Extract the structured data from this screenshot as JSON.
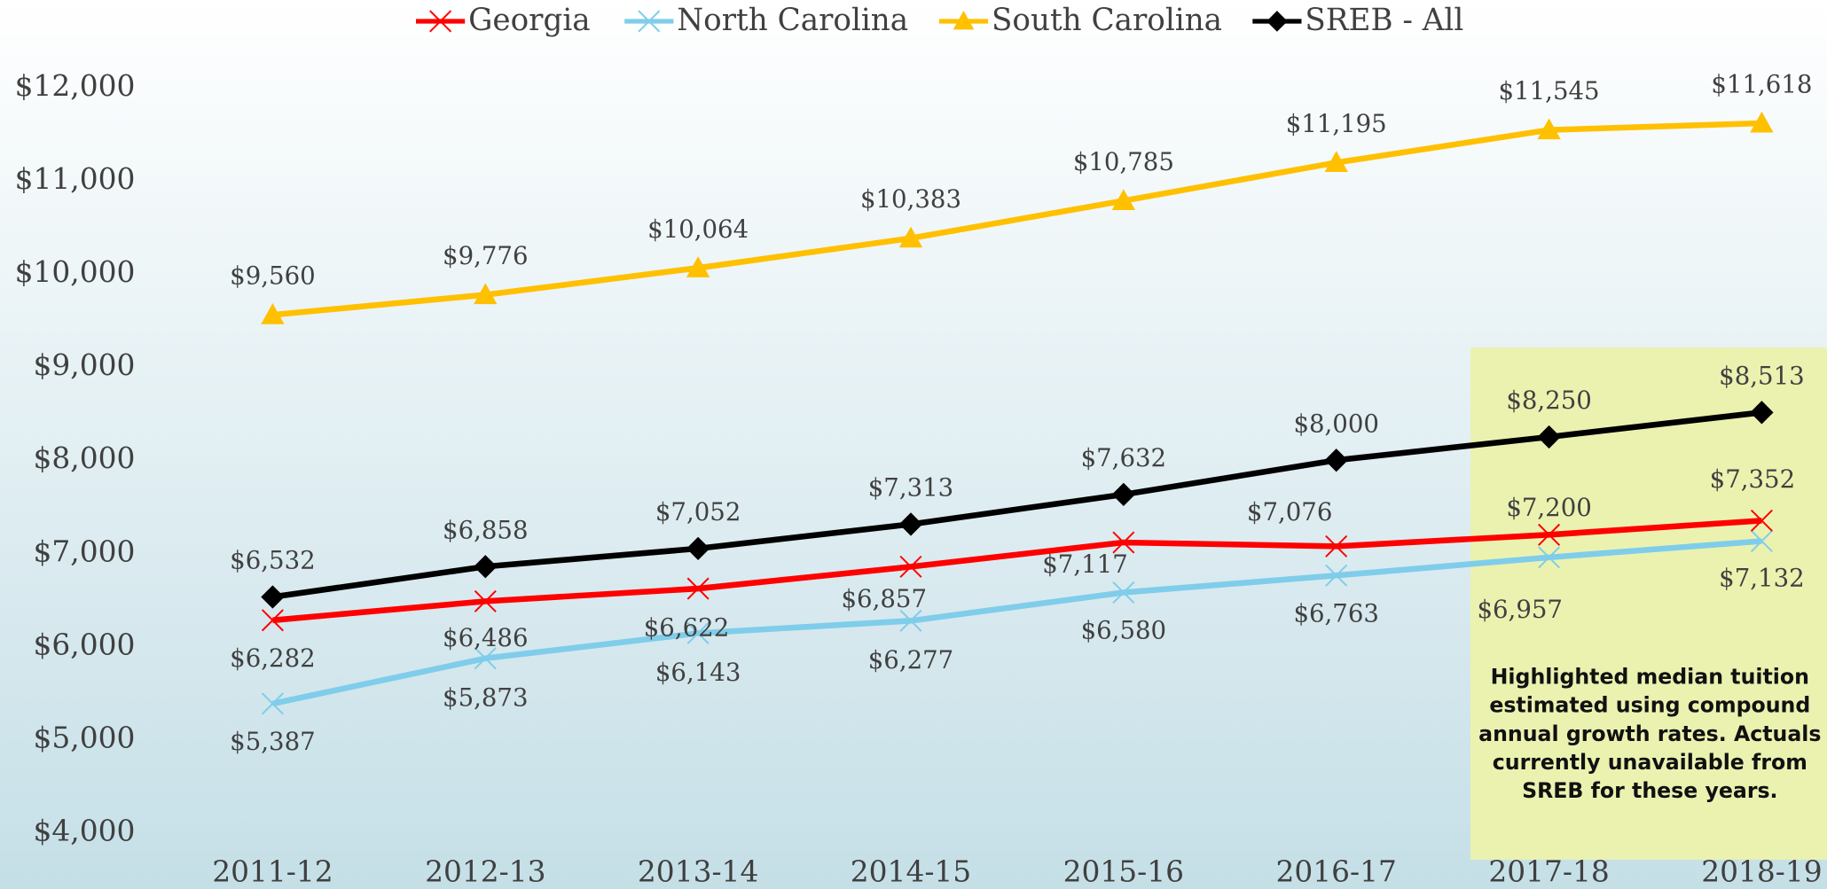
{
  "chart_data": {
    "type": "line",
    "categories": [
      "2011-12",
      "2012-13",
      "2013-14",
      "2014-15",
      "2015-16",
      "2016-17",
      "2017-18",
      "2018-19"
    ],
    "series": [
      {
        "name": "Georgia",
        "color": "#ff0000",
        "marker": "x",
        "values": [
          6282,
          6486,
          6622,
          6857,
          7117,
          7076,
          7200,
          7352
        ],
        "value_labels": [
          "$6,282",
          "$6,486",
          "$6,622",
          "$6,857",
          "$7,117",
          "$7,076",
          "$7,200",
          "$7,352"
        ]
      },
      {
        "name": "North Carolina",
        "color": "#7fcdea",
        "marker": "x",
        "values": [
          5387,
          5873,
          6143,
          6277,
          6580,
          6763,
          6957,
          7132
        ],
        "value_labels": [
          "$5,387",
          "$5,873",
          "$6,143",
          "$6,277",
          "$6,580",
          "$6,763",
          "$6,957",
          "$7,132"
        ]
      },
      {
        "name": "South Carolina",
        "color": "#ffc000",
        "marker": "triangle",
        "values": [
          9560,
          9776,
          10064,
          10383,
          10785,
          11195,
          11545,
          11618
        ],
        "value_labels": [
          "$9,560",
          "$9,776",
          "$10,064",
          "$10,383",
          "$10,785",
          "$11,195",
          "$11,545",
          "$11,618"
        ]
      },
      {
        "name": "SREB - All",
        "color": "#000000",
        "marker": "diamond",
        "values": [
          6532,
          6858,
          7052,
          7313,
          7632,
          8000,
          8250,
          8513
        ],
        "value_labels": [
          "$6,532",
          "$6,858",
          "$7,052",
          "$7,313",
          "$7,632",
          "$8,000",
          "$8,250",
          "$8,513"
        ]
      }
    ],
    "ylim": [
      4000,
      12000
    ],
    "yticks": [
      {
        "value": 4000,
        "label": "$4,000"
      },
      {
        "value": 5000,
        "label": "$5,000"
      },
      {
        "value": 6000,
        "label": "$6,000"
      },
      {
        "value": 7000,
        "label": "$7,000"
      },
      {
        "value": 8000,
        "label": "$8,000"
      },
      {
        "value": 9000,
        "label": "$9,000"
      },
      {
        "value": 10000,
        "label": "$10,000"
      },
      {
        "value": 11000,
        "label": "$11,000"
      },
      {
        "value": 12000,
        "label": "$12,000"
      }
    ],
    "grid": false,
    "legend": "top",
    "annotation": [
      "Highlighted median tuition",
      "estimated using compound",
      "annual growth rates. Actuals",
      "currently unavailable from",
      "SREB for these years."
    ]
  }
}
